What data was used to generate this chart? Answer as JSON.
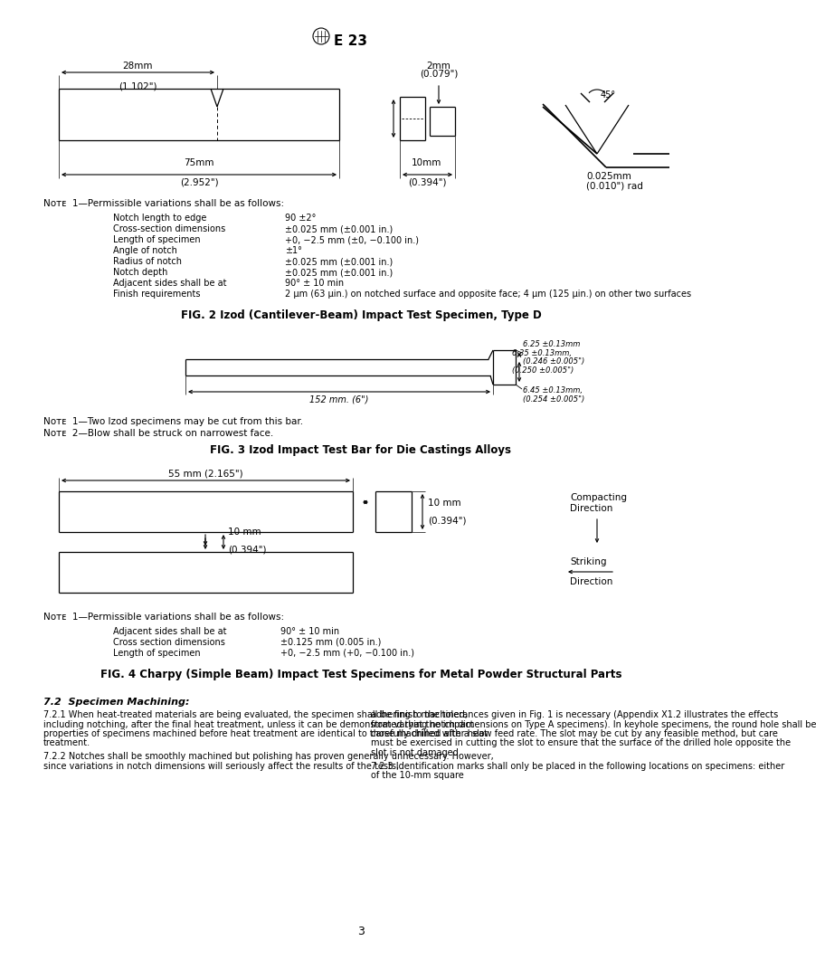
{
  "bg_color": "#ffffff",
  "fig2_title": "FIG. 2 Izod (Cantilever-Beam) Impact Test Specimen, Type D",
  "fig3_title": "FIG. 3 Izod Impact Test Bar for Die Castings Alloys",
  "fig4_title": "FIG. 4 Charpy (Simple Beam) Impact Test Specimens for Metal Powder Structural Parts",
  "note1_fig2": "Nᴏᴛᴇ  1—Permissible variations shall be as follows:",
  "fig2_notes": [
    [
      "Notch length to edge",
      "90 ±2°"
    ],
    [
      "Cross-section dimensions",
      "±0.025 mm (±0.001 in.)"
    ],
    [
      "Length of specimen",
      "+0, −2.5 mm (±0, −0.100 in.)"
    ],
    [
      "Angle of notch",
      "±1°"
    ],
    [
      "Radius of notch",
      "±0.025 mm (±0.001 in.)"
    ],
    [
      "Notch depth",
      "±0.025 mm (±0.001 in.)"
    ],
    [
      "Adjacent sides shall be at",
      "90° ± 10 min"
    ],
    [
      "Finish requirements",
      "2 μm (63 μin.) on notched surface and opposite face; 4 μm (125 μin.) on other two surfaces"
    ]
  ],
  "note1_fig3a": "Nᴏᴛᴇ  1—Two Izod specimens may be cut from this bar.",
  "note1_fig3b": "Nᴏᴛᴇ  2—Blow shall be struck on narrowest face.",
  "note1_fig4": "Nᴏᴛᴇ  1—Permissible variations shall be as follows:",
  "fig4_notes": [
    [
      "Adjacent sides shall be at",
      "90° ± 10 min"
    ],
    [
      "Cross section dimensions",
      "±0.125 mm (0.005 in.)"
    ],
    [
      "Length of specimen",
      "+0, −2.5 mm (+0, −0.100 in.)"
    ]
  ],
  "sec72_title": "7.2  Specimen Machining:",
  "sec721_left": "7.2.1  When heat-treated materials are being evaluated, the specimen shall be finish machined, including notching, after the final heat treatment, unless it can be demonstrated that the impact properties of specimens machined before heat treatment are identical to those machined after heat treatment.",
  "sec722_left": "7.2.2  Notches shall be smoothly machined but polishing has proven generally unnecessary. However, since variations in notch dimensions will seriously affect the results of the tests,",
  "sec721_right": "adhering to the tolerances given in Fig. 1 is necessary (Appendix X1.2 illustrates the effects from varying notch dimensions on Type A specimens). In keyhole specimens, the round hole shall be carefully drilled with a slow feed rate. The slot may be cut by any feasible method, but care must be exercised in cutting the slot to ensure that the surface of the drilled hole opposite the slot is not damaged.",
  "sec723_right": "7.2.3  Identification marks shall only be placed in the following locations on specimens: either of the 10-mm square",
  "page_number": "3"
}
